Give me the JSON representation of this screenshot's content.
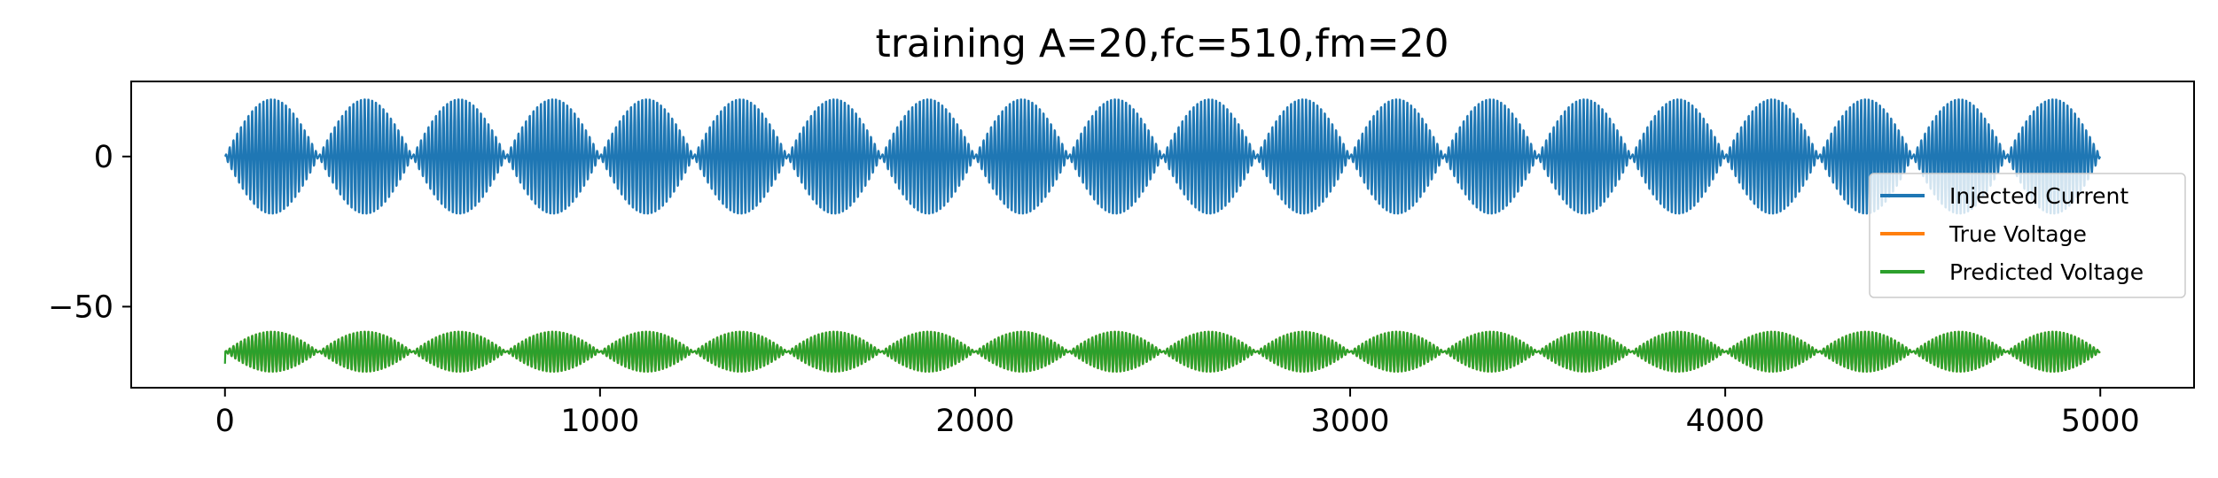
{
  "chart_data": {
    "type": "line",
    "title": "training A=20,fc=510,fm=20",
    "xlabel": "",
    "ylabel": "",
    "xlim": [
      -250,
      5250
    ],
    "ylim": [
      -77,
      25
    ],
    "xticks": [
      0,
      1000,
      2000,
      3000,
      4000,
      5000
    ],
    "xtick_labels": [
      "0",
      "1000",
      "2000",
      "3000",
      "4000",
      "5000"
    ],
    "yticks": [
      0,
      -50
    ],
    "ytick_labels": [
      "0",
      "−50"
    ],
    "legend_placement": "right",
    "grid": false,
    "n_samples": 5000,
    "envelope_period": 250,
    "carrier_period": 10,
    "series": [
      {
        "name": "Injected Current",
        "color": "#1f77b4",
        "offset": 0,
        "amplitude": 20
      },
      {
        "name": "True Voltage",
        "color": "#ff7f0e",
        "offset": -65,
        "amplitude": 7
      },
      {
        "name": "Predicted Voltage",
        "color": "#2ca02c",
        "offset": -65,
        "amplitude": 7,
        "start_value": -69
      }
    ]
  }
}
